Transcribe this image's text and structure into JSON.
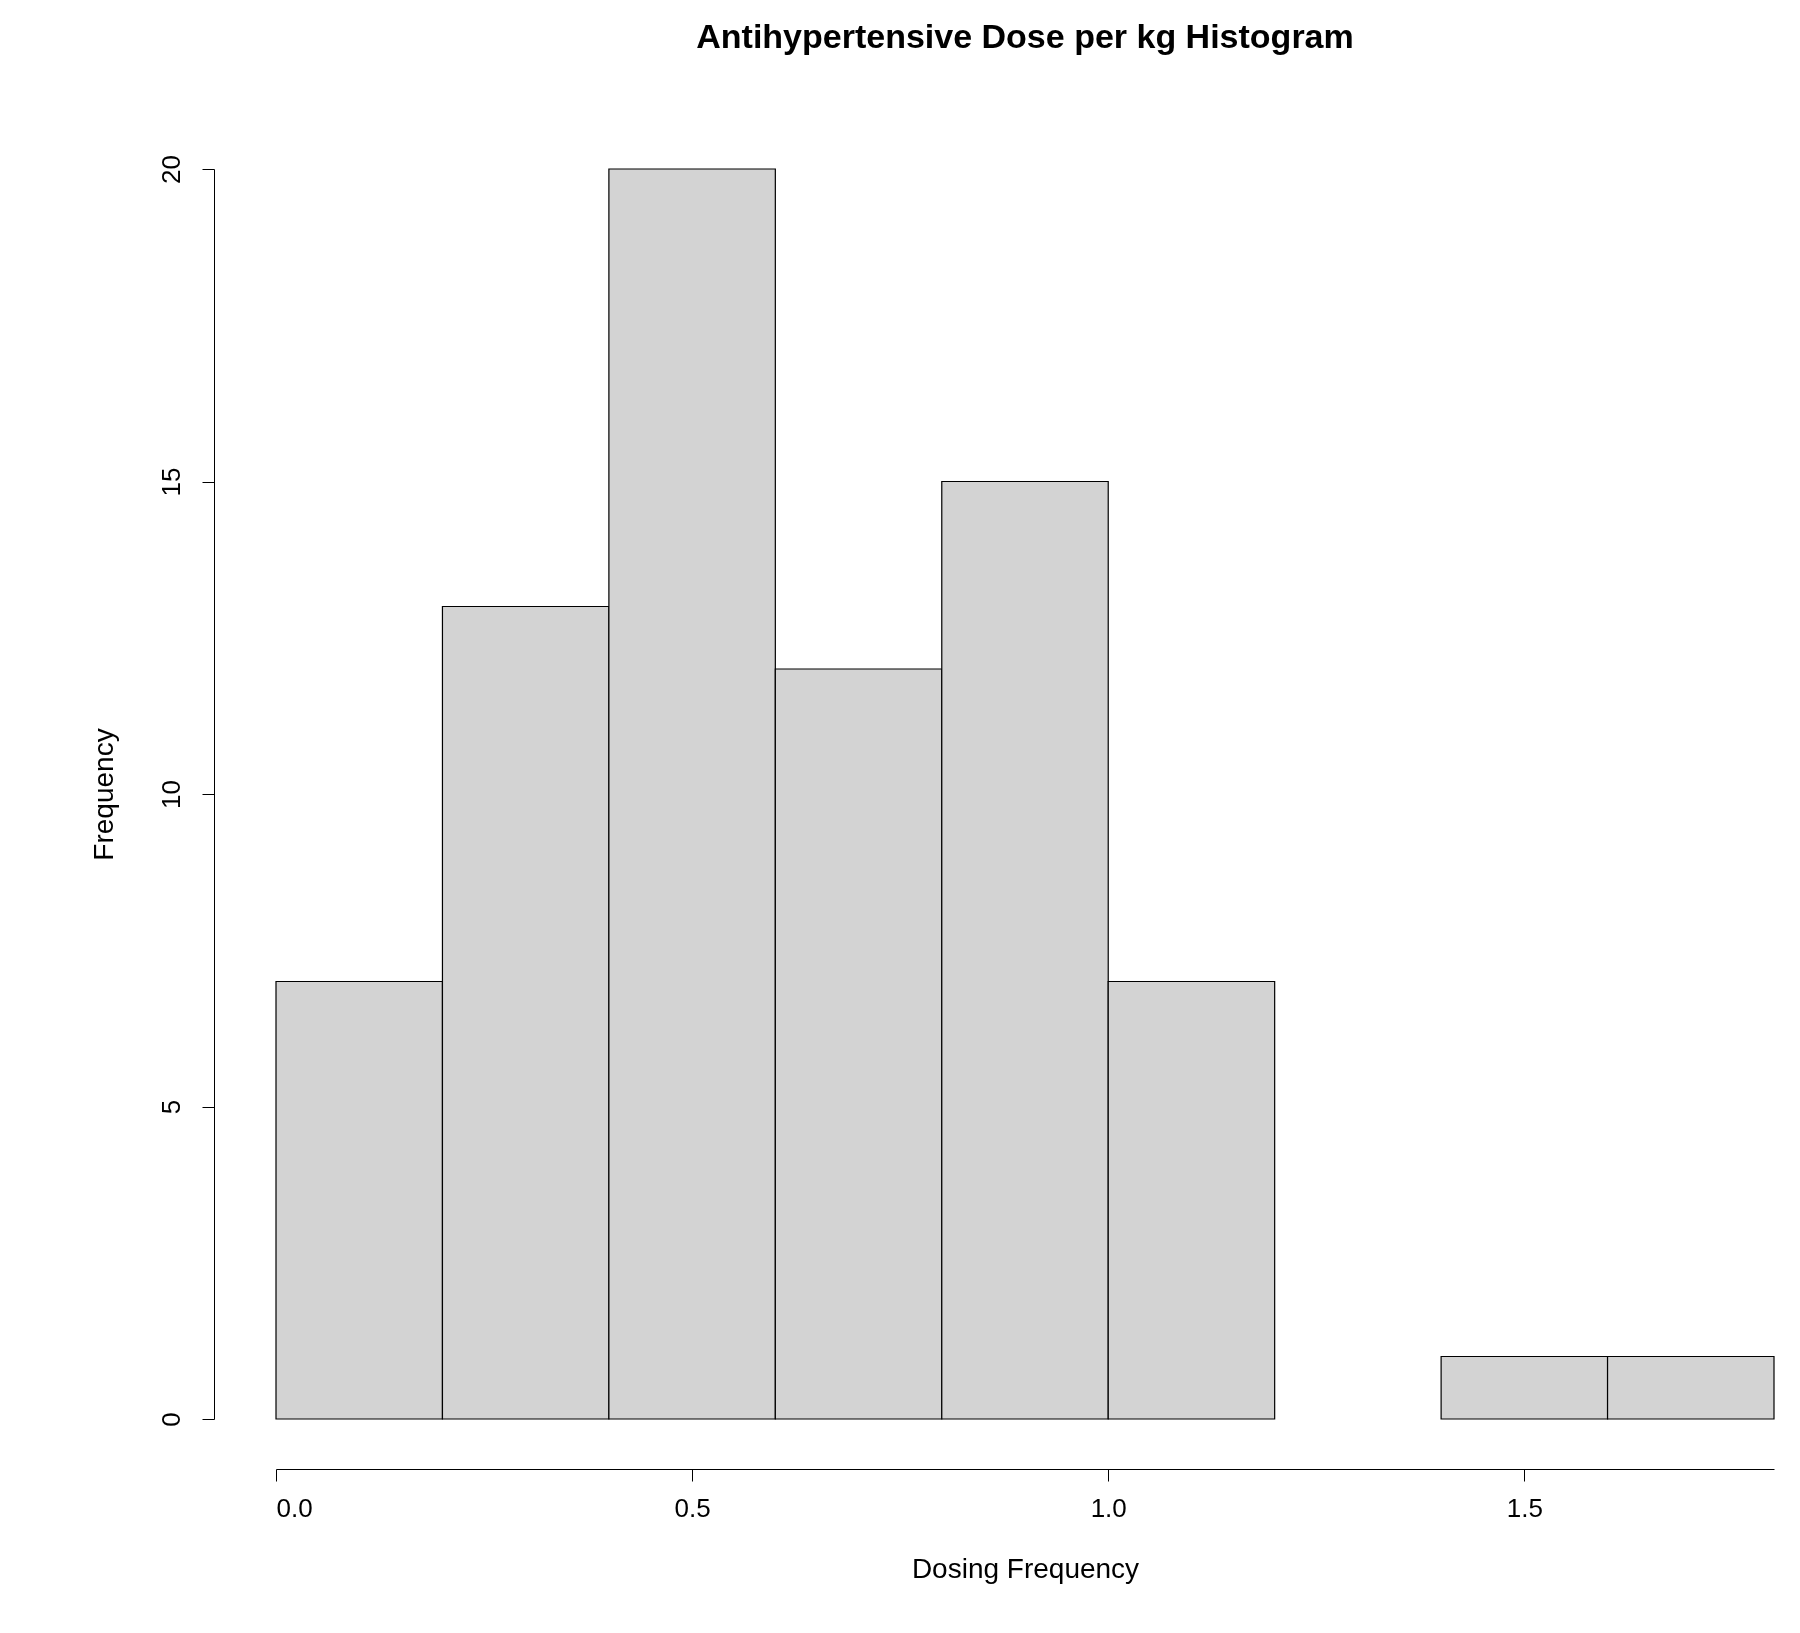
{
  "chart_data": {
    "type": "histogram",
    "title": "Antihypertensive Dose per kg Histogram",
    "xlabel": "Dosing Frequency",
    "ylabel": "Frequency",
    "bins": [
      0,
      0.2,
      0.4,
      0.6,
      0.8,
      1.0,
      1.2,
      1.4,
      1.6,
      1.8
    ],
    "values": [
      7,
      13,
      20,
      12,
      15,
      7,
      0,
      1,
      1
    ],
    "color": "#d3d3d3",
    "xlim": [
      0,
      1.8
    ],
    "ylim": [
      0,
      20
    ],
    "xticks": [
      {
        "value": 0,
        "label": "0.0"
      },
      {
        "value": 0.5,
        "label": "0.5"
      },
      {
        "value": 1,
        "label": "1.0"
      },
      {
        "value": 1.5,
        "label": "1.5"
      }
    ],
    "yticks": [
      0,
      5,
      10,
      15,
      20
    ],
    "grid": false
  }
}
